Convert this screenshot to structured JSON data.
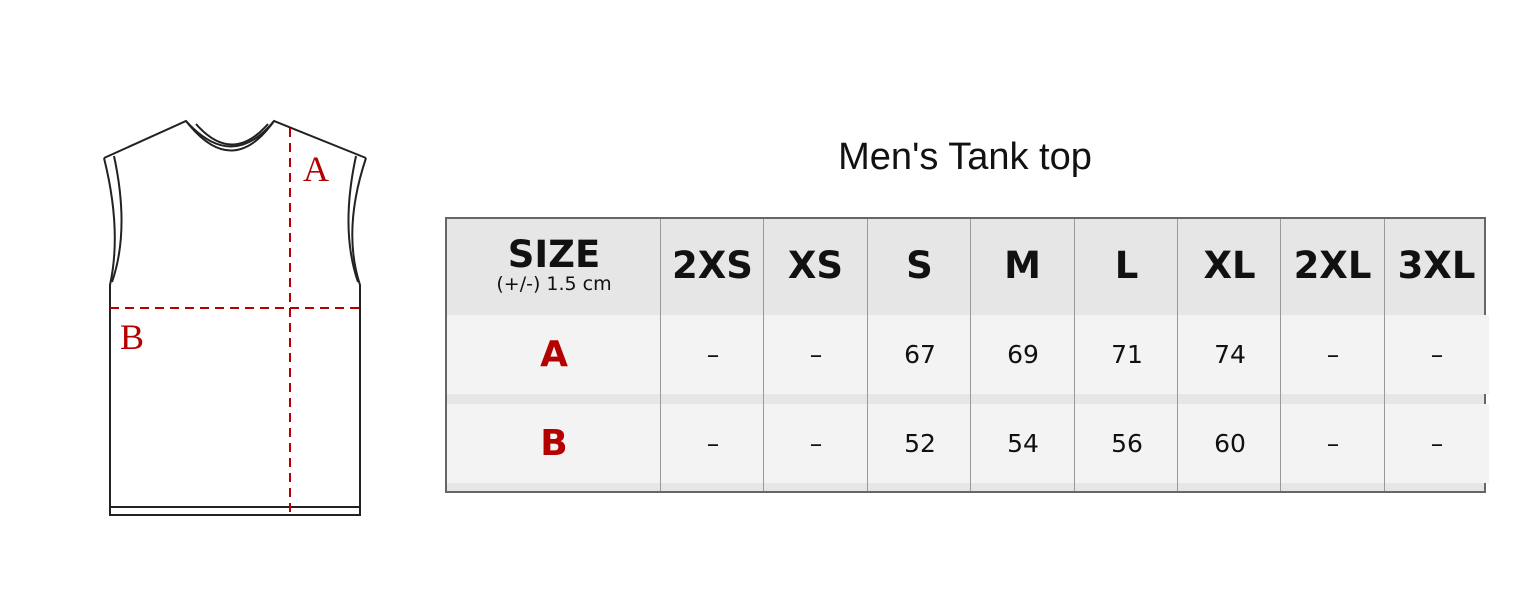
{
  "title": "Men's Tank top",
  "diagram": {
    "label_a": "A",
    "label_b": "B",
    "accent_color": "#b50000"
  },
  "table": {
    "size_header": "SIZE",
    "tolerance": "(+/-) 1.5 cm",
    "sizes": [
      "2XS",
      "XS",
      "S",
      "M",
      "L",
      "XL",
      "2XL",
      "3XL"
    ],
    "rows": [
      {
        "label": "A",
        "values": [
          "–",
          "–",
          "67",
          "69",
          "71",
          "74",
          "–",
          "–"
        ]
      },
      {
        "label": "B",
        "values": [
          "–",
          "–",
          "52",
          "54",
          "56",
          "60",
          "–",
          "–"
        ]
      }
    ]
  }
}
